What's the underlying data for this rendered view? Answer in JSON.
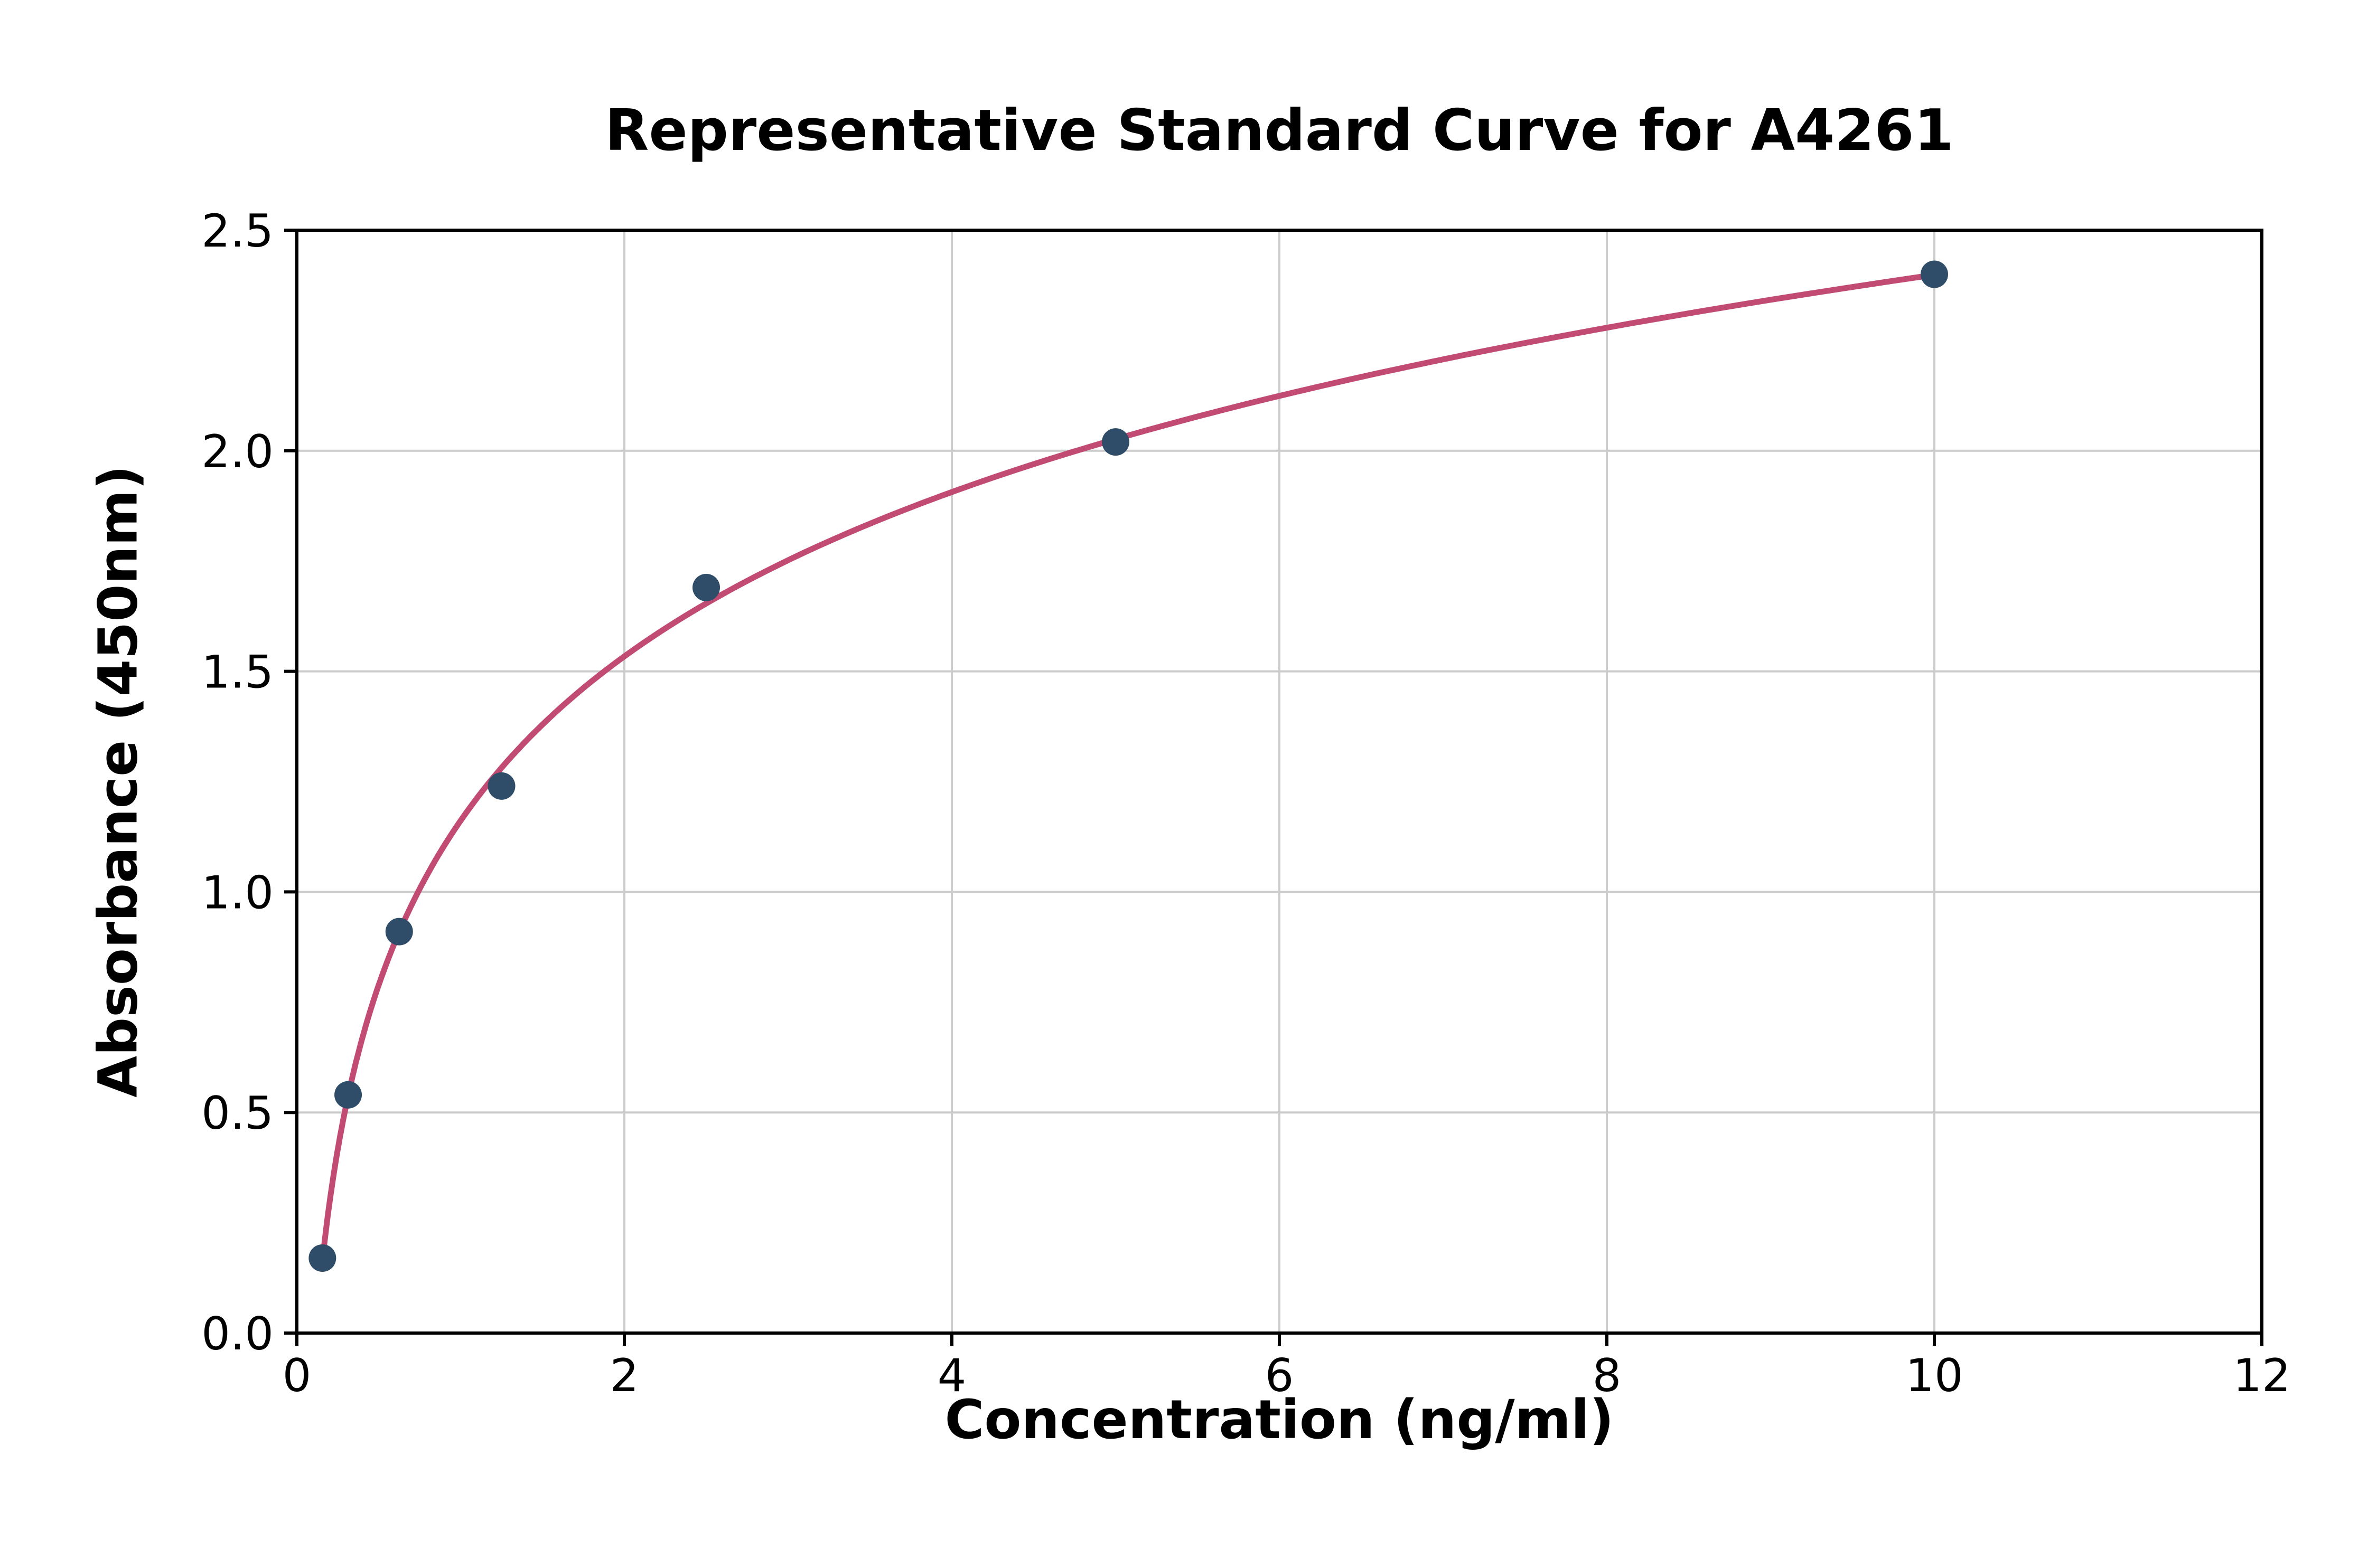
{
  "chart_data": {
    "type": "scatter",
    "title": "Representative Standard Curve for A4261",
    "xlabel": "Concentration (ng/ml)",
    "ylabel": "Absorbance (450nm)",
    "xlim": [
      0,
      12
    ],
    "ylim": [
      0,
      2.5
    ],
    "x_ticks": [
      0,
      2,
      4,
      6,
      8,
      10,
      12
    ],
    "x_tick_labels": [
      "0",
      "2",
      "4",
      "6",
      "8",
      "10",
      "12"
    ],
    "y_ticks": [
      0.0,
      0.5,
      1.0,
      1.5,
      2.0,
      2.5
    ],
    "y_tick_labels": [
      "0.0",
      "0.5",
      "1.0",
      "1.5",
      "2.0",
      "2.5"
    ],
    "grid": true,
    "legend": "none",
    "points": [
      {
        "x": 0.156,
        "y": 0.17
      },
      {
        "x": 0.313,
        "y": 0.54
      },
      {
        "x": 0.625,
        "y": 0.91
      },
      {
        "x": 1.25,
        "y": 1.24
      },
      {
        "x": 2.5,
        "y": 1.69
      },
      {
        "x": 5.0,
        "y": 2.02
      },
      {
        "x": 10.0,
        "y": 2.4
      }
    ],
    "curve": {
      "type": "log-fit",
      "description": "smooth fitted standard curve through the dilution-series points"
    },
    "colors": {
      "marker": "#2f4d68",
      "curve": "#c14b72",
      "grid": "#cccccc",
      "axis": "#000000",
      "background": "#ffffff"
    }
  }
}
